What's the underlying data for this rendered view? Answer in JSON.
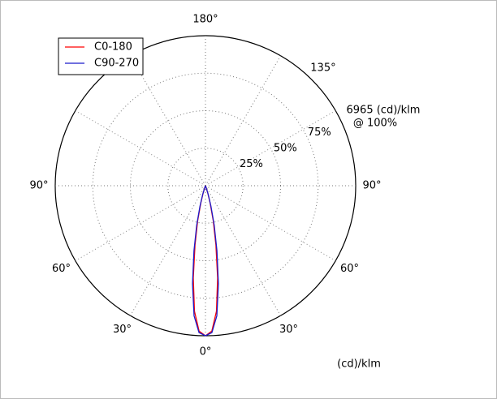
{
  "chart_data": {
    "type": "polar",
    "max_label": "6965 (cd)/klm",
    "max_note": "@ 100%",
    "unit_label": "(cd)/klm",
    "rlim": [
      0,
      6965
    ],
    "rticks": [
      {
        "value": 1741.25,
        "label": "25%"
      },
      {
        "value": 3482.5,
        "label": "50%"
      },
      {
        "value": 5223.75,
        "label": "75%"
      }
    ],
    "angle_labels": [
      {
        "value": 180,
        "label": "180°"
      },
      {
        "value": 135,
        "label": "135°"
      },
      {
        "value": 90,
        "label": "90°"
      },
      {
        "value": -90,
        "label": "90°"
      },
      {
        "value": 60,
        "label": "60°"
      },
      {
        "value": -60,
        "label": "60°"
      },
      {
        "value": 30,
        "label": "30°"
      },
      {
        "value": -30,
        "label": "30°"
      },
      {
        "value": 0,
        "label": "0°"
      }
    ],
    "angles": [
      0,
      2.5,
      5,
      7.5,
      10,
      12.5,
      15,
      17.5,
      20,
      25
    ],
    "series": [
      {
        "name": "C0-180",
        "color": "#ff0000",
        "values": [
          6965,
          6756,
          5851,
          4318,
          2786,
          1672,
          836,
          348,
          70,
          0
        ]
      },
      {
        "name": "C90-270",
        "color": "#1a1acc",
        "values": [
          6965,
          6826,
          6060,
          4597,
          3065,
          1881,
          975,
          418,
          104,
          0
        ]
      }
    ]
  }
}
